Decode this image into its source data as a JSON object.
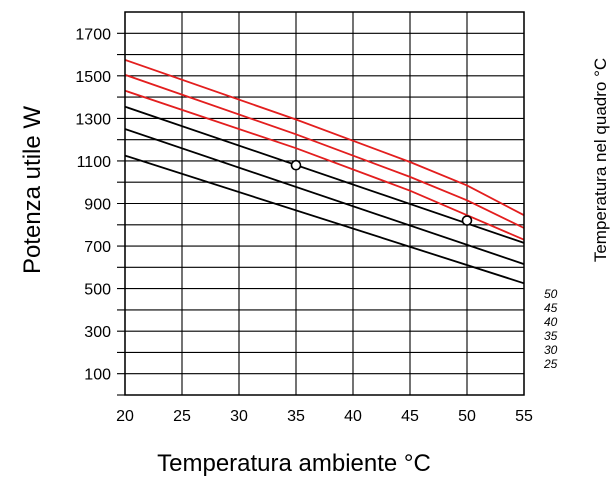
{
  "chart_data": {
    "type": "line",
    "title": "",
    "xlabel": "Temperatura ambiente °C",
    "ylabel": "Potenza utile   W",
    "right_label": "Temperatura nel quadro °C",
    "xlim": [
      20,
      55
    ],
    "ylim": [
      0,
      1800
    ],
    "x_ticks": [
      20,
      25,
      30,
      35,
      40,
      45,
      50,
      55
    ],
    "y_ticks": [
      100,
      300,
      500,
      700,
      900,
      1100,
      1300,
      1500,
      1700
    ],
    "y_minor_gridlines": [
      200,
      400,
      600,
      800,
      1000,
      1200,
      1400,
      1600
    ],
    "grid": true,
    "series": [
      {
        "name": "50",
        "color": "#e31e1e",
        "x": [
          20,
          35,
          45,
          50,
          55
        ],
        "y": [
          1575,
          1295,
          1095,
          985,
          845
        ]
      },
      {
        "name": "45",
        "color": "#e31e1e",
        "x": [
          20,
          35,
          45,
          50,
          55
        ],
        "y": [
          1505,
          1225,
          1025,
          915,
          785
        ]
      },
      {
        "name": "40",
        "color": "#e31e1e",
        "x": [
          20,
          35,
          45,
          50,
          55
        ],
        "y": [
          1430,
          1160,
          960,
          845,
          730
        ]
      },
      {
        "name": "35",
        "color": "#000000",
        "x": [
          20,
          55
        ],
        "y": [
          1355,
          715
        ]
      },
      {
        "name": "30",
        "color": "#000000",
        "x": [
          20,
          55
        ],
        "y": [
          1250,
          615
        ]
      },
      {
        "name": "25",
        "color": "#000000",
        "x": [
          20,
          55
        ],
        "y": [
          1125,
          525
        ]
      }
    ],
    "markers": [
      {
        "x": 35,
        "y": 1080
      },
      {
        "x": 50,
        "y": 820
      }
    ]
  }
}
